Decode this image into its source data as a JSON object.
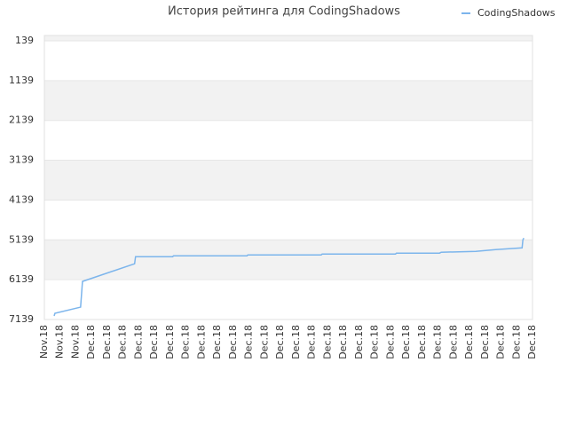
{
  "chart_data": {
    "type": "line",
    "title": "История рейтинга для CodingShadows",
    "categories": [
      "Nov.18",
      "Nov.18",
      "Nov.18",
      "Dec.18",
      "Dec.18",
      "Dec.18",
      "Dec.18",
      "Dec.18",
      "Dec.18",
      "Dec.18",
      "Dec.18",
      "Dec.18",
      "Dec.18",
      "Dec.18",
      "Dec.18",
      "Dec.18",
      "Dec.18",
      "Dec.18",
      "Dec.18",
      "Dec.18",
      "Dec.18",
      "Dec.18",
      "Dec.18",
      "Dec.18",
      "Dec.18",
      "Dec.18",
      "Dec.18",
      "Dec.18",
      "Dec.18",
      "Dec.18",
      "Dec.18",
      "Dec.18"
    ],
    "xlim": [
      0,
      31
    ],
    "ylim": [
      7139,
      6
    ],
    "yticks": [
      139,
      1139,
      2139,
      3139,
      4139,
      5139,
      6139,
      7139
    ],
    "grid": true,
    "legend": "top-right",
    "series": [
      {
        "name": "CodingShadows",
        "color": "#7cb5ec",
        "x": [
          0.62,
          0.67,
          2.3,
          2.42,
          5.73,
          5.79,
          8.15,
          8.2,
          12.87,
          12.92,
          17.58,
          17.64,
          22.3,
          22.36,
          25.1,
          25.2,
          27.4,
          28.65,
          29.5,
          30.34,
          30.39,
          30.45
        ],
        "values": [
          7050,
          6983,
          6828,
          6183,
          5739,
          5561,
          5561,
          5539,
          5539,
          5517,
          5517,
          5494,
          5494,
          5472,
          5472,
          5450,
          5428,
          5383,
          5361,
          5339,
          5139,
          5094
        ]
      }
    ]
  }
}
